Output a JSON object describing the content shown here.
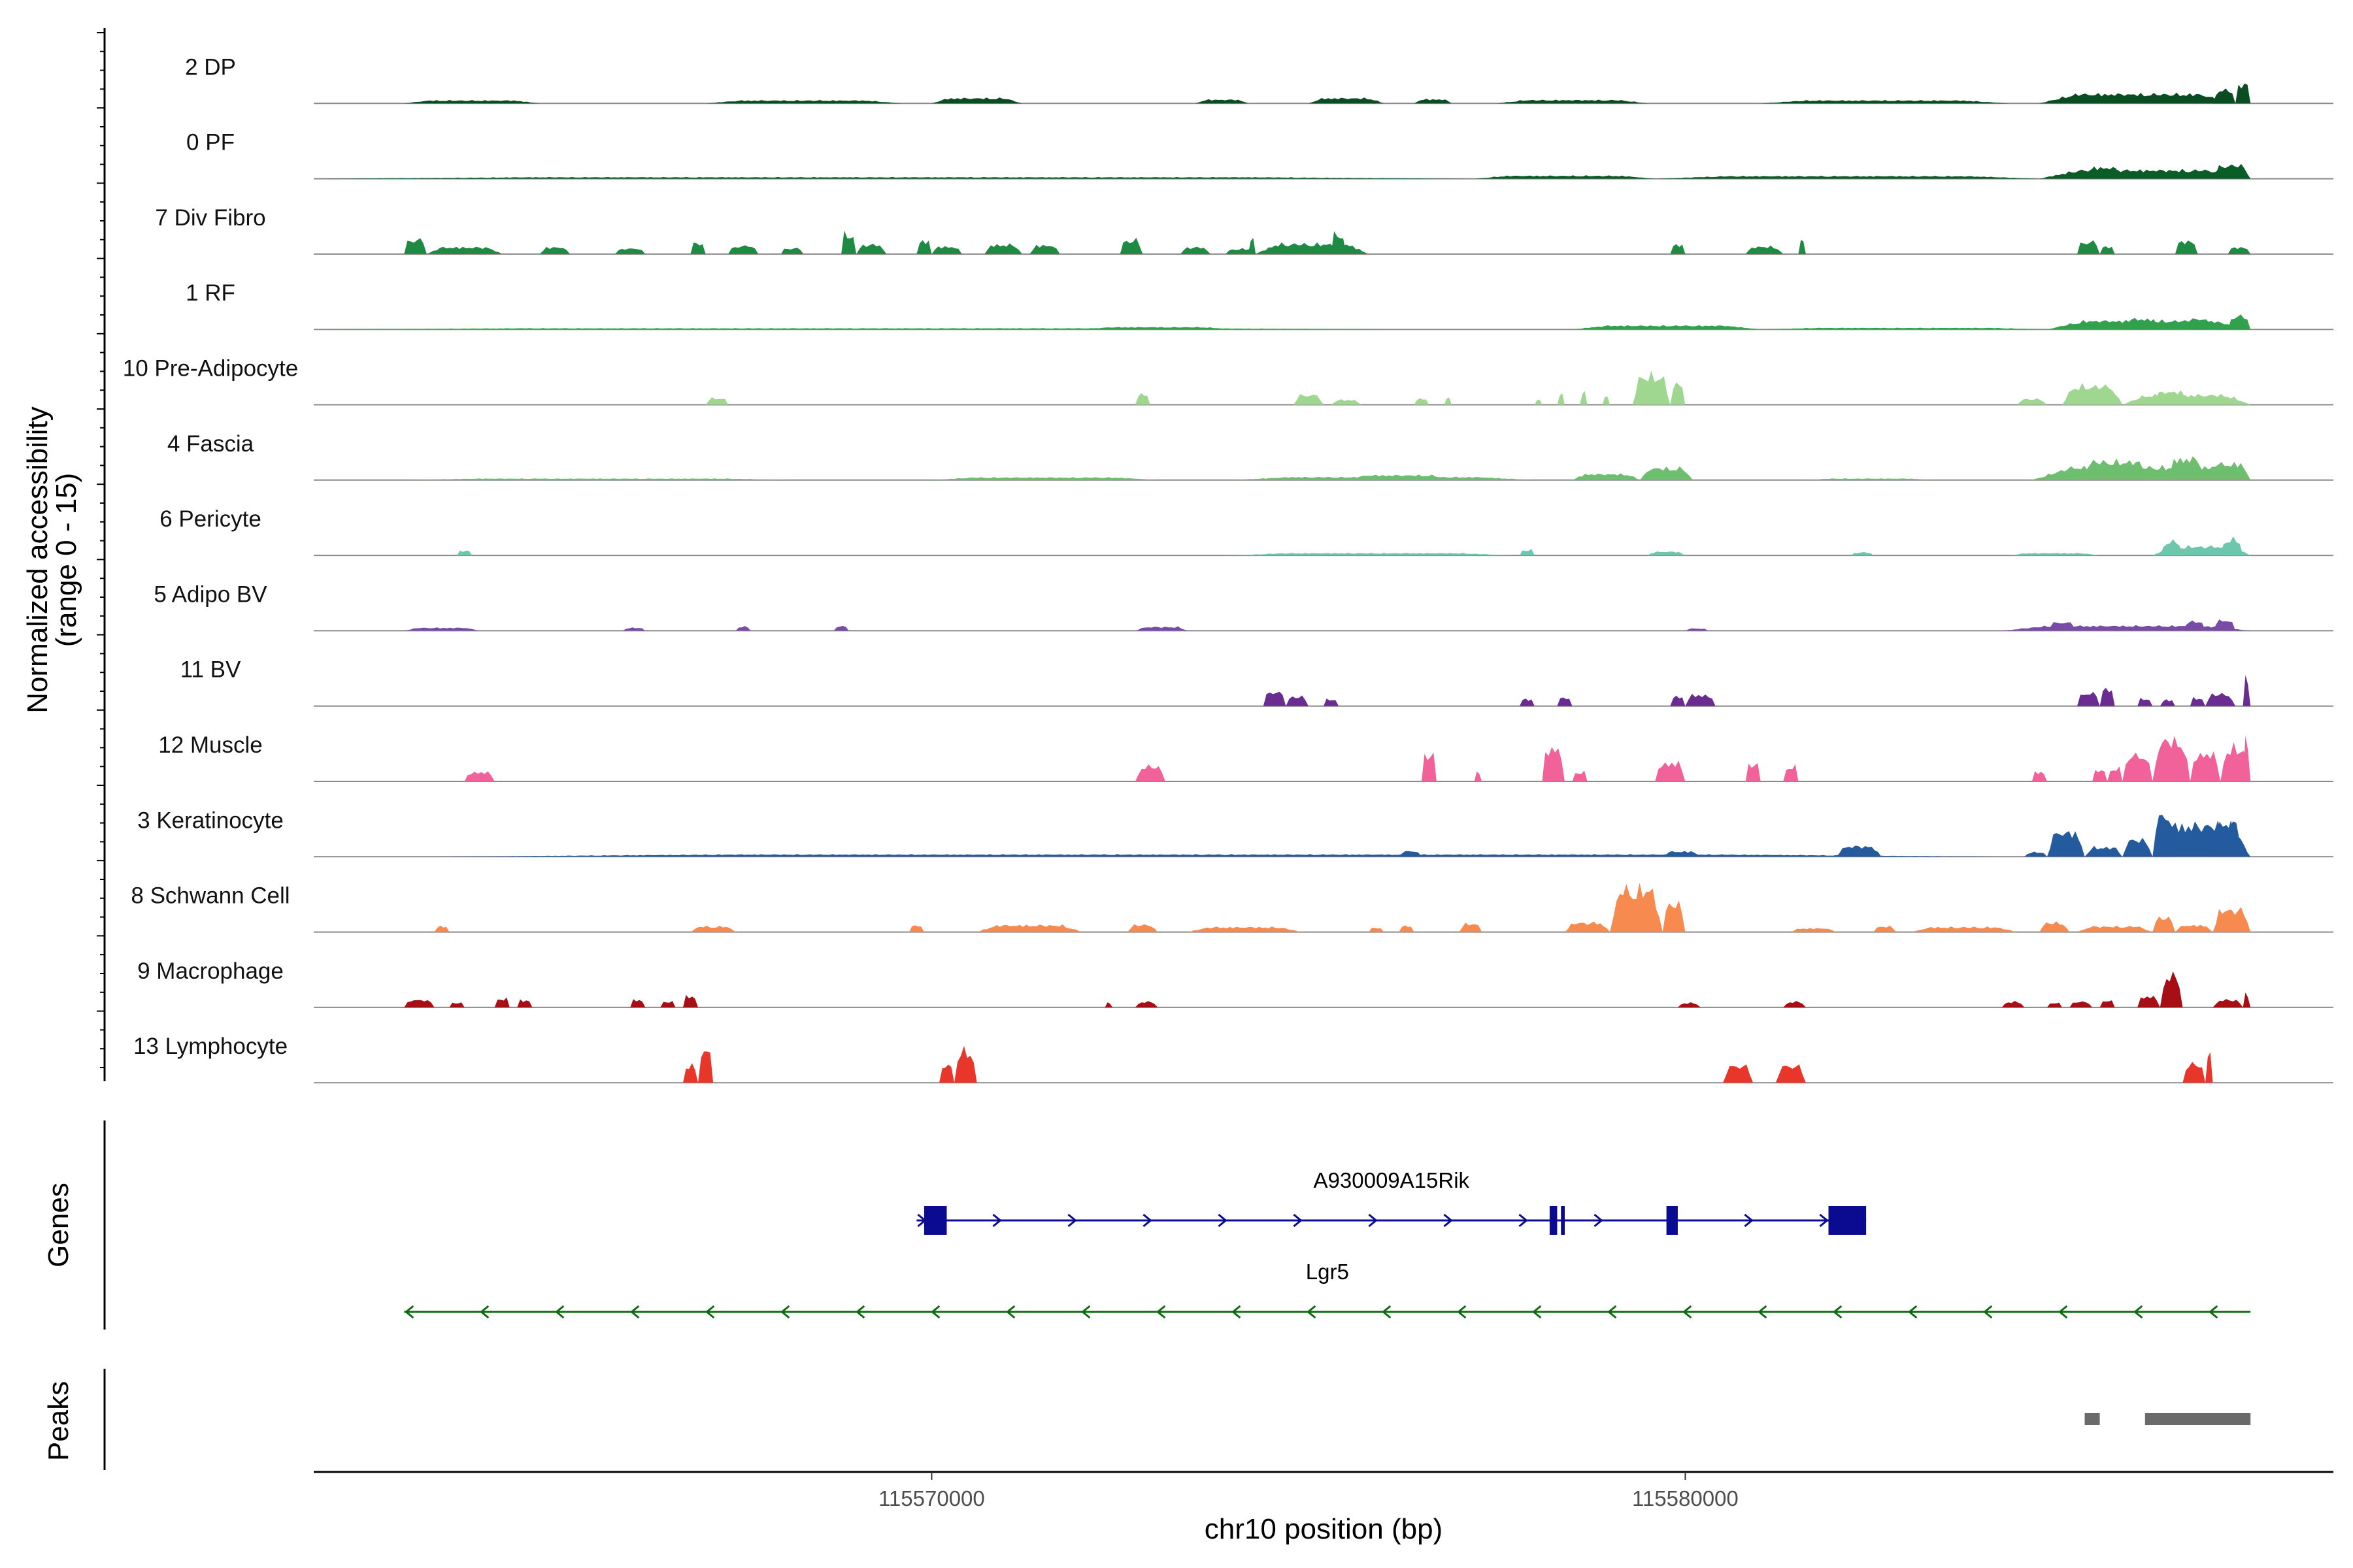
{
  "chart_data": {
    "type": "area",
    "title": "",
    "ylabel_line1": "Normalized accessibility",
    "ylabel_line2": "(range 0 - 15)",
    "xlabel": "chr10 position (bp)",
    "xlim": [
      115561800,
      115588600
    ],
    "ylim": [
      0,
      15
    ],
    "x_ticks": [
      {
        "value": 115570000,
        "label": "115570000"
      },
      {
        "value": 115580000,
        "label": "115580000"
      }
    ],
    "tracks": [
      {
        "name": "2 DP",
        "color": "#0b4d22",
        "regions": [
          [
            115563000,
            115564800,
            0.8
          ],
          [
            115567000,
            115569600,
            0.8
          ],
          [
            115570000,
            115571200,
            1.4
          ],
          [
            115573500,
            115574200,
            1.0
          ],
          [
            115575000,
            115576000,
            1.4
          ],
          [
            115576400,
            115576900,
            1.1
          ],
          [
            115577500,
            115579500,
            0.9
          ],
          [
            115581000,
            115584300,
            0.8
          ],
          [
            115584700,
            115587300,
            2.5
          ],
          [
            115587000,
            115587300,
            3.7
          ],
          [
            115587300,
            115587500,
            5.0
          ]
        ]
      },
      {
        "name": "0 PF",
        "color": "#0b5d28",
        "regions": [
          [
            115561800,
            115577200,
            0.4
          ],
          [
            115577200,
            115579600,
            0.8
          ],
          [
            115579600,
            115584700,
            0.7
          ],
          [
            115584700,
            115587500,
            2.3
          ],
          [
            115585300,
            115585800,
            3.0
          ],
          [
            115587000,
            115587500,
            3.6
          ]
        ]
      },
      {
        "name": "7 Div Fibro",
        "color": "#1e8a43",
        "regions": [
          [
            115563000,
            115563300,
            4.0
          ],
          [
            115563300,
            115564300,
            1.8
          ],
          [
            115564800,
            115565200,
            1.8
          ],
          [
            115565800,
            115566200,
            1.5
          ],
          [
            115566800,
            115567000,
            3.0
          ],
          [
            115567300,
            115567700,
            2.2
          ],
          [
            115568000,
            115568300,
            1.6
          ],
          [
            115568800,
            115569000,
            5.5
          ],
          [
            115569000,
            115569400,
            2.5
          ],
          [
            115569800,
            115570000,
            3.5
          ],
          [
            115570000,
            115570400,
            2.0
          ],
          [
            115570700,
            115571200,
            2.5
          ],
          [
            115571300,
            115571700,
            2.3
          ],
          [
            115572500,
            115572800,
            3.8
          ],
          [
            115573300,
            115573700,
            1.8
          ],
          [
            115573900,
            115574300,
            1.4
          ],
          [
            115574200,
            115574300,
            4.0
          ],
          [
            115574300,
            115575800,
            2.7
          ],
          [
            115575300,
            115575500,
            5.5
          ],
          [
            115579800,
            115580000,
            2.5
          ],
          [
            115580800,
            115581300,
            2.0
          ],
          [
            115581500,
            115581600,
            3.5
          ],
          [
            115585200,
            115585500,
            3.4
          ],
          [
            115585500,
            115585700,
            2.0
          ],
          [
            115586500,
            115586800,
            3.5
          ],
          [
            115587200,
            115587500,
            1.8
          ]
        ]
      },
      {
        "name": "1 RF",
        "color": "#31a14d",
        "regions": [
          [
            115561800,
            115576200,
            0.3
          ],
          [
            115572000,
            115574000,
            0.6
          ],
          [
            115578500,
            115581000,
            1.0
          ],
          [
            115581000,
            115584800,
            0.4
          ],
          [
            115584800,
            115587500,
            2.3
          ],
          [
            115585800,
            115586300,
            2.8
          ],
          [
            115586600,
            115587000,
            2.8
          ],
          [
            115587200,
            115587500,
            3.6
          ]
        ]
      },
      {
        "name": "10 Pre-Adipocyte",
        "color": "#9fd690",
        "regions": [
          [
            115567000,
            115567300,
            1.8
          ],
          [
            115572700,
            115572900,
            2.8
          ],
          [
            115574800,
            115575200,
            2.6
          ],
          [
            115575300,
            115575700,
            1.3
          ],
          [
            115576400,
            115576600,
            1.6
          ],
          [
            115576800,
            115576900,
            2.0
          ],
          [
            115578000,
            115578100,
            1.5
          ],
          [
            115578300,
            115578400,
            3.0
          ],
          [
            115578600,
            115578700,
            3.5
          ],
          [
            115578900,
            115579000,
            2.5
          ],
          [
            115579300,
            115579800,
            7.8
          ],
          [
            115579800,
            115580000,
            5.5
          ],
          [
            115584400,
            115584800,
            1.5
          ],
          [
            115585000,
            115585800,
            5.0
          ],
          [
            115585800,
            115587500,
            2.6
          ],
          [
            115586200,
            115586700,
            3.5
          ]
        ]
      },
      {
        "name": "4 Fascia",
        "color": "#6dbf6f",
        "regions": [
          [
            115563000,
            115568200,
            0.4
          ],
          [
            115570000,
            115573000,
            0.7
          ],
          [
            115574000,
            115578000,
            0.8
          ],
          [
            115575500,
            115576900,
            1.3
          ],
          [
            115578500,
            115579400,
            1.6
          ],
          [
            115579400,
            115580100,
            3.2
          ],
          [
            115581600,
            115583300,
            0.4
          ],
          [
            115584600,
            115587500,
            3.5
          ],
          [
            115585200,
            115586200,
            5.0
          ],
          [
            115586400,
            115586900,
            5.8
          ],
          [
            115586900,
            115587500,
            4.4
          ]
        ]
      },
      {
        "name": "6 Pericyte",
        "color": "#6cc7ad",
        "regions": [
          [
            115563700,
            115563900,
            1.2
          ],
          [
            115574000,
            115577700,
            0.6
          ],
          [
            115577800,
            115578000,
            1.5
          ],
          [
            115579500,
            115580000,
            1.0
          ],
          [
            115582200,
            115582500,
            0.8
          ],
          [
            115584300,
            115585500,
            0.6
          ],
          [
            115586200,
            115587500,
            2.4
          ],
          [
            115586300,
            115586600,
            3.8
          ],
          [
            115587100,
            115587400,
            4.4
          ]
        ]
      },
      {
        "name": "5 Adipo BV",
        "color": "#7a4aa8",
        "regions": [
          [
            115563000,
            115564000,
            0.8
          ],
          [
            115565900,
            115566200,
            0.8
          ],
          [
            115567400,
            115567600,
            1.1
          ],
          [
            115568700,
            115568900,
            1.2
          ],
          [
            115572700,
            115573400,
            1.0
          ],
          [
            115580000,
            115580300,
            0.6
          ],
          [
            115584200,
            115587500,
            1.3
          ],
          [
            115584800,
            115585200,
            2.2
          ],
          [
            115586600,
            115586900,
            2.5
          ],
          [
            115587000,
            115587300,
            2.8
          ]
        ]
      },
      {
        "name": "11 BV",
        "color": "#6a2c90",
        "regions": [
          [
            115574400,
            115574700,
            3.8
          ],
          [
            115574700,
            115575000,
            2.5
          ],
          [
            115575200,
            115575400,
            1.8
          ],
          [
            115577800,
            115578000,
            1.8
          ],
          [
            115578300,
            115578500,
            2.2
          ],
          [
            115579800,
            115580000,
            2.5
          ],
          [
            115580000,
            115580400,
            3.0
          ],
          [
            115585200,
            115585500,
            3.5
          ],
          [
            115585500,
            115585700,
            4.5
          ],
          [
            115586000,
            115586200,
            2.0
          ],
          [
            115586300,
            115586500,
            1.6
          ],
          [
            115586700,
            115586900,
            2.2
          ],
          [
            115586900,
            115587300,
            3.2
          ],
          [
            115587400,
            115587500,
            7.5
          ]
        ]
      },
      {
        "name": "12 Muscle",
        "color": "#f2629a",
        "regions": [
          [
            115563800,
            115564200,
            2.5
          ],
          [
            115572700,
            115573100,
            4.0
          ],
          [
            115576500,
            115576700,
            7.0
          ],
          [
            115577200,
            115577300,
            2.5
          ],
          [
            115578100,
            115578400,
            9.0
          ],
          [
            115578500,
            115578700,
            2.5
          ],
          [
            115579600,
            115580000,
            5.0
          ],
          [
            115580800,
            115581000,
            4.5
          ],
          [
            115581300,
            115581500,
            4.0
          ],
          [
            115584600,
            115584800,
            2.5
          ],
          [
            115585400,
            115585600,
            3.0
          ],
          [
            115585600,
            115585800,
            3.5
          ],
          [
            115585800,
            115586200,
            7.0
          ],
          [
            115586200,
            115586700,
            11.0
          ],
          [
            115586700,
            115587100,
            7.5
          ],
          [
            115587100,
            115587500,
            9.0
          ],
          [
            115587400,
            115587500,
            11.0
          ]
        ]
      },
      {
        "name": "3 Keratinocyte",
        "color": "#235b9e",
        "regions": [
          [
            115563400,
            115584300,
            0.6
          ],
          [
            115576200,
            115576500,
            1.5
          ],
          [
            115579700,
            115580200,
            1.4
          ],
          [
            115582000,
            115582600,
            2.8
          ],
          [
            115584500,
            115584800,
            1.2
          ],
          [
            115584800,
            115585300,
            6.5
          ],
          [
            115585300,
            115585800,
            2.5
          ],
          [
            115585800,
            115586200,
            4.5
          ],
          [
            115586200,
            115587500,
            8.5
          ],
          [
            115586200,
            115586500,
            11.0
          ],
          [
            115587000,
            115587400,
            9.0
          ]
        ]
      },
      {
        "name": "8 Schwann Cell",
        "color": "#f68a4f",
        "regions": [
          [
            115563400,
            115563600,
            1.5
          ],
          [
            115566800,
            115567400,
            1.5
          ],
          [
            115569700,
            115569900,
            1.7
          ],
          [
            115570600,
            115572000,
            1.8
          ],
          [
            115572600,
            115573000,
            1.9
          ],
          [
            115573400,
            115574900,
            1.3
          ],
          [
            115575800,
            115576000,
            1.1
          ],
          [
            115576200,
            115576400,
            1.6
          ],
          [
            115577000,
            115577300,
            2.2
          ],
          [
            115578400,
            115579000,
            2.5
          ],
          [
            115579000,
            115579700,
            11.5
          ],
          [
            115579700,
            115580000,
            7.5
          ],
          [
            115581400,
            115582000,
            1.0
          ],
          [
            115582500,
            115582800,
            1.5
          ],
          [
            115583000,
            115584400,
            1.3
          ],
          [
            115584700,
            115585100,
            2.5
          ],
          [
            115585200,
            115586200,
            1.5
          ],
          [
            115586200,
            115586500,
            3.8
          ],
          [
            115586500,
            115587000,
            1.8
          ],
          [
            115587000,
            115587500,
            6.0
          ]
        ]
      },
      {
        "name": "9 Macrophage",
        "color": "#a50f15",
        "regions": [
          [
            115563000,
            115563400,
            2.0
          ],
          [
            115563600,
            115563800,
            1.2
          ],
          [
            115564200,
            115564400,
            2.3
          ],
          [
            115564500,
            115564700,
            1.9
          ],
          [
            115566000,
            115566200,
            2.0
          ],
          [
            115566400,
            115566600,
            1.5
          ],
          [
            115566700,
            115566900,
            3.0
          ],
          [
            115572300,
            115572400,
            1.2
          ],
          [
            115572700,
            115573000,
            1.5
          ],
          [
            115579900,
            115580200,
            1.2
          ],
          [
            115581300,
            115581600,
            1.5
          ],
          [
            115584200,
            115584500,
            1.5
          ],
          [
            115584800,
            115585000,
            1.2
          ],
          [
            115585100,
            115585400,
            1.5
          ],
          [
            115585500,
            115585700,
            1.8
          ],
          [
            115586000,
            115586300,
            3.0
          ],
          [
            115586300,
            115586600,
            8.5
          ],
          [
            115587000,
            115587400,
            2.0
          ],
          [
            115587400,
            115587500,
            3.5
          ]
        ]
      },
      {
        "name": "13 Lymphocyte",
        "color": "#e8362a",
        "regions": [
          [
            115566700,
            115566900,
            4.5
          ],
          [
            115566900,
            115567100,
            8.5
          ],
          [
            115570100,
            115570300,
            4.5
          ],
          [
            115570300,
            115570600,
            8.5
          ],
          [
            115580500,
            115580900,
            4.5
          ],
          [
            115581200,
            115581600,
            4.5
          ],
          [
            115586600,
            115586900,
            5.0
          ],
          [
            115586900,
            115587000,
            8.5
          ]
        ]
      }
    ],
    "genes_title": "Genes",
    "genes": [
      {
        "name": "A930009A15Rik",
        "strand": "+",
        "color": "#0b0b91",
        "start": 115569800,
        "end": 115582400,
        "exons": [
          [
            115569900,
            115570200
          ],
          [
            115578200,
            115578300
          ],
          [
            115578350,
            115578400
          ],
          [
            115579750,
            115579900
          ],
          [
            115581900,
            115582400
          ]
        ]
      },
      {
        "name": "Lgr5",
        "strand": "-",
        "color": "#0d6b10",
        "start": 115563000,
        "end": 115587500,
        "exons": []
      }
    ],
    "peaks_title": "Peaks",
    "peaks_color": "#6a6a6a",
    "peaks": [
      [
        115585300,
        115585500
      ],
      [
        115586100,
        115587500
      ]
    ]
  }
}
